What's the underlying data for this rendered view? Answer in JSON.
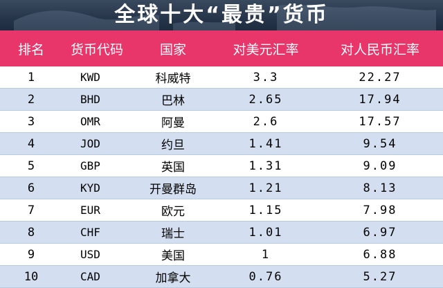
{
  "title": "全球十大“最贵”货币",
  "headers": {
    "rank": "排名",
    "code": "货币代码",
    "country": "国家",
    "usd_rate": "对美元汇率",
    "cny_rate": "对人民币汇率"
  },
  "rows": [
    {
      "rank": "1",
      "code": "KWD",
      "country": "科威特",
      "usd_rate": "3.3",
      "cny_rate": "22.27"
    },
    {
      "rank": "2",
      "code": "BHD",
      "country": "巴林",
      "usd_rate": "2.65",
      "cny_rate": "17.94"
    },
    {
      "rank": "3",
      "code": "OMR",
      "country": "阿曼",
      "usd_rate": "2.6",
      "cny_rate": "17.57"
    },
    {
      "rank": "4",
      "code": "JOD",
      "country": "约旦",
      "usd_rate": "1.41",
      "cny_rate": "9.54"
    },
    {
      "rank": "5",
      "code": "GBP",
      "country": "英国",
      "usd_rate": "1.31",
      "cny_rate": "9.09"
    },
    {
      "rank": "6",
      "code": "KYD",
      "country": "开曼群岛",
      "usd_rate": "1.21",
      "cny_rate": "8.13"
    },
    {
      "rank": "7",
      "code": "EUR",
      "country": "欧元",
      "usd_rate": "1.15",
      "cny_rate": "7.98"
    },
    {
      "rank": "8",
      "code": "CHF",
      "country": "瑞士",
      "usd_rate": "1.01",
      "cny_rate": "6.97"
    },
    {
      "rank": "9",
      "code": "USD",
      "country": "美国",
      "usd_rate": "1",
      "cny_rate": "6.88"
    },
    {
      "rank": "10",
      "code": "CAD",
      "country": "加拿大",
      "usd_rate": "0.76",
      "cny_rate": "5.27"
    }
  ],
  "colors": {
    "header_band": "#26354a",
    "table_header": "#e8356a",
    "alt_row": "#d3dff0",
    "plain_row": "#ffffff"
  }
}
